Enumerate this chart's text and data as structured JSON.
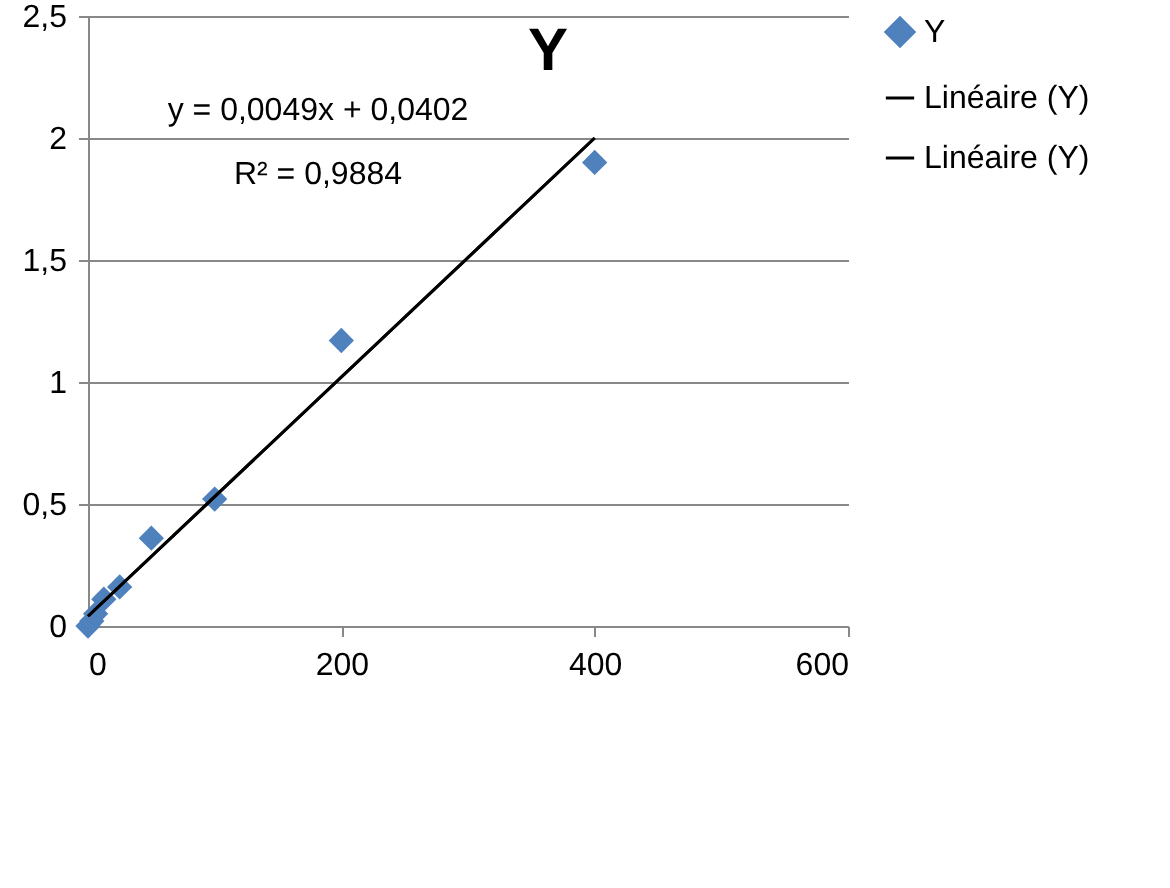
{
  "chart_data": {
    "type": "scatter",
    "title": "Y",
    "series": [
      {
        "name": "Y",
        "color": "#4f81bd",
        "marker": "diamond",
        "x": [
          0,
          3,
          6,
          12.5,
          25,
          50,
          100,
          200,
          400
        ],
        "values": [
          0,
          0.02,
          0.05,
          0.11,
          0.16,
          0.36,
          0.52,
          1.17,
          1.9
        ]
      },
      {
        "name": "Linéaire (Y)",
        "type": "line",
        "color": "#000000",
        "x": [
          0,
          400
        ],
        "values": [
          0.04,
          2.0
        ]
      },
      {
        "name": "Linéaire (Y)",
        "type": "line",
        "color": "#000000",
        "x": [
          0,
          400
        ],
        "values": [
          0.04,
          2.0
        ]
      }
    ],
    "annotations": [
      "y = 0,0049x + 0,0402",
      "R² = 0,9884"
    ],
    "xlim": [
      0,
      600
    ],
    "xticks": [
      0,
      200,
      400,
      600
    ],
    "ylim": [
      0,
      2.5
    ],
    "yticks": [
      0,
      {
        "value": 0.5,
        "label": "0,5"
      },
      1,
      {
        "value": 1.5,
        "label": "1,5"
      },
      2,
      {
        "value": 2.5,
        "label": "2,5"
      }
    ],
    "grid": "y",
    "legend": "right"
  }
}
